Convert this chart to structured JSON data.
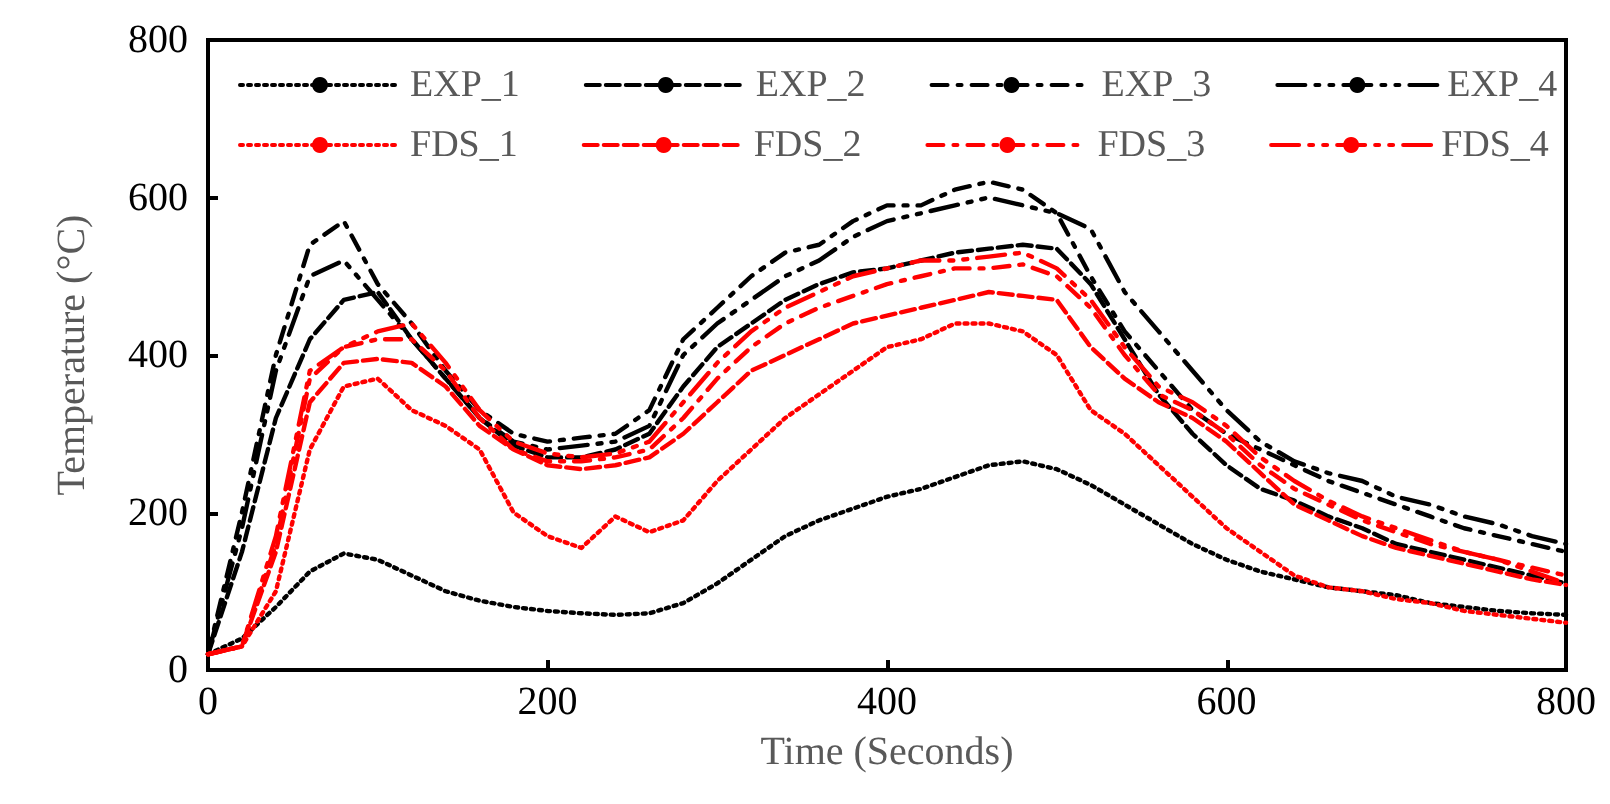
{
  "chart_data": {
    "type": "line",
    "xlabel": "Time (Seconds)",
    "ylabel": "Temperature (°C)",
    "x": [
      0,
      20,
      40,
      60,
      80,
      100,
      120,
      140,
      160,
      180,
      200,
      220,
      240,
      260,
      280,
      300,
      320,
      340,
      360,
      380,
      400,
      420,
      440,
      460,
      480,
      500,
      520,
      540,
      560,
      580,
      600,
      620,
      640,
      660,
      680,
      700,
      720,
      740,
      760,
      780,
      800
    ],
    "xlim": [
      0,
      800
    ],
    "xticks": [
      0,
      200,
      400,
      600,
      800
    ],
    "ylim": [
      0,
      800
    ],
    "yticks": [
      0,
      200,
      400,
      600,
      800
    ],
    "grid": false,
    "legend": "top",
    "marker": "none",
    "series": [
      {
        "name": "EXP_1",
        "color": "#000000",
        "line_style": "dotted",
        "values": [
          20,
          40,
          80,
          125,
          148,
          140,
          120,
          100,
          88,
          80,
          75,
          72,
          70,
          72,
          85,
          110,
          140,
          170,
          190,
          205,
          220,
          230,
          245,
          260,
          265,
          255,
          235,
          210,
          185,
          160,
          140,
          125,
          115,
          105,
          100,
          95,
          85,
          80,
          75,
          72,
          70
        ]
      },
      {
        "name": "EXP_2",
        "color": "#000000",
        "line_style": "dashed",
        "values": [
          20,
          150,
          320,
          420,
          470,
          480,
          420,
          370,
          320,
          285,
          270,
          270,
          280,
          300,
          360,
          410,
          440,
          470,
          490,
          505,
          510,
          520,
          530,
          535,
          540,
          535,
          490,
          420,
          350,
          300,
          260,
          230,
          215,
          195,
          180,
          160,
          150,
          140,
          130,
          120,
          110
        ]
      },
      {
        "name": "EXP_3",
        "color": "#000000",
        "line_style": "dashdot",
        "values": [
          20,
          200,
          400,
          540,
          570,
          490,
          440,
          380,
          330,
          300,
          290,
          295,
          300,
          330,
          420,
          460,
          500,
          530,
          540,
          570,
          590,
          590,
          610,
          620,
          610,
          580,
          500,
          430,
          380,
          330,
          300,
          280,
          260,
          240,
          225,
          210,
          195,
          180,
          170,
          160,
          150
        ]
      },
      {
        "name": "EXP_4",
        "color": "#000000",
        "line_style": "longdashdotdot",
        "values": [
          20,
          180,
          380,
          500,
          520,
          470,
          420,
          370,
          320,
          290,
          280,
          285,
          290,
          310,
          400,
          440,
          470,
          500,
          520,
          550,
          570,
          580,
          590,
          600,
          590,
          580,
          560,
          480,
          430,
          380,
          330,
          290,
          265,
          250,
          240,
          220,
          210,
          195,
          185,
          170,
          160
        ]
      },
      {
        "name": "FDS_1",
        "color": "#ff0000",
        "line_style": "dotted",
        "values": [
          20,
          30,
          100,
          280,
          360,
          370,
          330,
          310,
          280,
          200,
          170,
          155,
          195,
          175,
          190,
          240,
          280,
          320,
          350,
          380,
          410,
          420,
          440,
          440,
          430,
          400,
          330,
          300,
          260,
          220,
          180,
          150,
          120,
          105,
          100,
          90,
          85,
          75,
          70,
          65,
          60
        ]
      },
      {
        "name": "FDS_2",
        "color": "#ff0000",
        "line_style": "dashed",
        "values": [
          20,
          30,
          150,
          340,
          390,
          395,
          390,
          360,
          310,
          280,
          260,
          255,
          260,
          270,
          300,
          340,
          380,
          400,
          420,
          440,
          450,
          460,
          470,
          480,
          475,
          470,
          410,
          370,
          340,
          320,
          290,
          250,
          210,
          190,
          170,
          155,
          145,
          135,
          125,
          115,
          108
        ]
      },
      {
        "name": "FDS_3",
        "color": "#ff0000",
        "line_style": "dashdot",
        "values": [
          20,
          30,
          160,
          370,
          410,
          420,
          420,
          380,
          320,
          280,
          265,
          265,
          270,
          280,
          320,
          370,
          410,
          440,
          460,
          475,
          490,
          500,
          510,
          510,
          515,
          500,
          460,
          400,
          350,
          330,
          300,
          260,
          230,
          210,
          190,
          175,
          160,
          150,
          140,
          130,
          120
        ]
      },
      {
        "name": "FDS_4",
        "color": "#ff0000",
        "line_style": "longdashdotdot",
        "values": [
          20,
          30,
          170,
          380,
          410,
          430,
          440,
          390,
          330,
          290,
          275,
          270,
          275,
          290,
          340,
          390,
          430,
          460,
          480,
          500,
          510,
          520,
          520,
          525,
          530,
          510,
          470,
          410,
          360,
          340,
          310,
          270,
          240,
          215,
          195,
          180,
          165,
          150,
          140,
          125,
          110
        ]
      }
    ]
  }
}
